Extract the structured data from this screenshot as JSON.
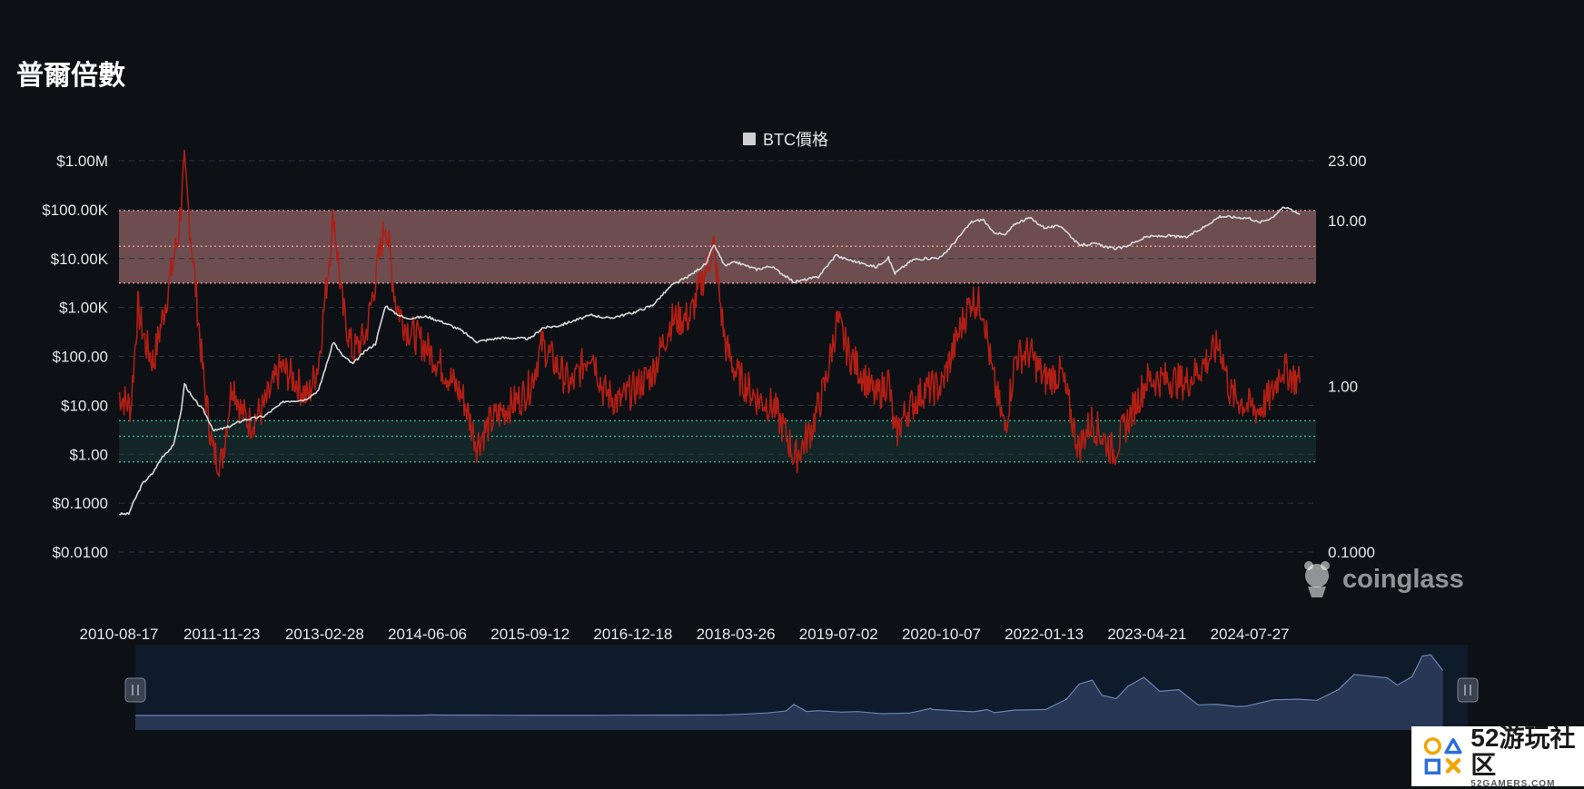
{
  "title": "普爾倍數",
  "legend": {
    "label": "BTC價格",
    "color": "#cfcfcf"
  },
  "watermark": "coinglass",
  "logo": {
    "name": "52游玩社区",
    "sub": "52GAMERS.COM"
  },
  "chart_data": {
    "type": "line",
    "title": "普爾倍數",
    "x_dates": [
      "2010-08-17",
      "2011-11-23",
      "2013-02-28",
      "2014-06-06",
      "2015-09-12",
      "2016-12-18",
      "2018-03-26",
      "2019-07-02",
      "2020-10-07",
      "2022-01-13",
      "2023-04-21",
      "2024-07-27"
    ],
    "left_axis": {
      "scale": "log",
      "ticks": [
        "$1.00M",
        "$100.00K",
        "$10.00K",
        "$1.00K",
        "$100.00",
        "$10.00",
        "$1.00",
        "$0.1000",
        "$0.0100"
      ],
      "range": [
        0.01,
        1000000
      ]
    },
    "right_axis": {
      "scale": "log",
      "ticks": [
        "23.00",
        "10.00",
        "1.00",
        "0.1000"
      ],
      "range": [
        0.1,
        23
      ]
    },
    "bands": [
      {
        "name": "overvalued",
        "from": 4.2,
        "to": 11.5,
        "mid": 7.0,
        "color": "#f4a3a3"
      },
      {
        "name": "undervalued",
        "from": 0.35,
        "to": 0.62,
        "mid": 0.5,
        "color": "#3fbf9f"
      }
    ],
    "grid": true,
    "legend_position": "top-center",
    "series": [
      {
        "name": "BTC價格",
        "axis": "left",
        "color": "#d9d9d9",
        "points": [
          [
            "2010-08-17",
            0.06
          ],
          [
            "2010-09-30",
            0.06
          ],
          [
            "2010-10-20",
            0.1
          ],
          [
            "2010-12-01",
            0.25
          ],
          [
            "2011-01-15",
            0.4
          ],
          [
            "2011-03-01",
            0.9
          ],
          [
            "2011-04-20",
            1.5
          ],
          [
            "2011-05-25",
            8
          ],
          [
            "2011-06-08",
            28
          ],
          [
            "2011-07-15",
            14
          ],
          [
            "2011-09-01",
            8
          ],
          [
            "2011-10-20",
            3
          ],
          [
            "2011-12-15",
            3.5
          ],
          [
            "2012-03-01",
            5
          ],
          [
            "2012-06-01",
            6
          ],
          [
            "2012-09-01",
            12
          ],
          [
            "2012-12-01",
            13
          ],
          [
            "2013-02-01",
            20
          ],
          [
            "2013-04-10",
            200
          ],
          [
            "2013-05-15",
            110
          ],
          [
            "2013-07-05",
            70
          ],
          [
            "2013-09-01",
            130
          ],
          [
            "2013-10-15",
            180
          ],
          [
            "2013-11-30",
            1100
          ],
          [
            "2014-01-05",
            800
          ],
          [
            "2014-03-01",
            600
          ],
          [
            "2014-06-06",
            650
          ],
          [
            "2014-08-15",
            500
          ],
          [
            "2014-11-01",
            350
          ],
          [
            "2015-01-15",
            200
          ],
          [
            "2015-05-01",
            240
          ],
          [
            "2015-09-12",
            230
          ],
          [
            "2015-11-05",
            380
          ],
          [
            "2016-01-15",
            420
          ],
          [
            "2016-06-15",
            700
          ],
          [
            "2016-09-01",
            600
          ],
          [
            "2016-12-18",
            780
          ],
          [
            "2017-03-15",
            1100
          ],
          [
            "2017-06-10",
            2800
          ],
          [
            "2017-09-01",
            4500
          ],
          [
            "2017-11-15",
            8000
          ],
          [
            "2017-12-17",
            19500
          ],
          [
            "2018-02-06",
            7000
          ],
          [
            "2018-03-26",
            8500
          ],
          [
            "2018-06-28",
            6000
          ],
          [
            "2018-09-01",
            7000
          ],
          [
            "2018-11-25",
            3800
          ],
          [
            "2018-12-15",
            3300
          ],
          [
            "2019-04-01",
            4200
          ],
          [
            "2019-06-26",
            12500
          ],
          [
            "2019-07-02",
            10800
          ],
          [
            "2019-10-01",
            8300
          ],
          [
            "2019-12-18",
            6700
          ],
          [
            "2020-02-12",
            10300
          ],
          [
            "2020-03-12",
            5000
          ],
          [
            "2020-06-01",
            9500
          ],
          [
            "2020-10-07",
            10600
          ],
          [
            "2020-12-30",
            29000
          ],
          [
            "2021-02-20",
            56000
          ],
          [
            "2021-04-14",
            63000
          ],
          [
            "2021-05-23",
            36000
          ],
          [
            "2021-07-20",
            30000
          ],
          [
            "2021-09-06",
            52000
          ],
          [
            "2021-11-10",
            68000
          ],
          [
            "2022-01-13",
            43000
          ],
          [
            "2022-04-01",
            46000
          ],
          [
            "2022-06-18",
            19000
          ],
          [
            "2022-09-01",
            20000
          ],
          [
            "2022-11-21",
            16000
          ],
          [
            "2023-01-01",
            16600
          ],
          [
            "2023-04-21",
            28000
          ],
          [
            "2023-08-01",
            29000
          ],
          [
            "2023-10-15",
            27000
          ],
          [
            "2024-01-10",
            46000
          ],
          [
            "2024-03-14",
            73000
          ],
          [
            "2024-07-27",
            67000
          ],
          [
            "2024-09-06",
            54000
          ],
          [
            "2024-11-05",
            69000
          ],
          [
            "2024-12-17",
            106000
          ],
          [
            "2025-01-20",
            108000
          ],
          [
            "2025-03-10",
            80000
          ]
        ]
      },
      {
        "name": "普爾倍數",
        "axis": "right",
        "color": "#b01e14",
        "points": [
          [
            "2010-08-17",
            0.9
          ],
          [
            "2010-10-10",
            0.75
          ],
          [
            "2010-11-10",
            3.0
          ],
          [
            "2010-12-15",
            1.8
          ],
          [
            "2011-01-20",
            1.4
          ],
          [
            "2011-03-15",
            3.2
          ],
          [
            "2011-05-10",
            8.0
          ],
          [
            "2011-06-08",
            21.0
          ],
          [
            "2011-07-25",
            4.5
          ],
          [
            "2011-09-05",
            1.0
          ],
          [
            "2011-10-15",
            0.4
          ],
          [
            "2011-11-23",
            0.35
          ],
          [
            "2012-01-10",
            1.1
          ],
          [
            "2012-02-20",
            0.7
          ],
          [
            "2012-04-01",
            0.6
          ],
          [
            "2012-06-01",
            0.75
          ],
          [
            "2012-08-15",
            1.3
          ],
          [
            "2012-10-15",
            1.1
          ],
          [
            "2012-12-15",
            0.85
          ],
          [
            "2013-02-01",
            1.4
          ],
          [
            "2013-04-10",
            11.0
          ],
          [
            "2013-05-20",
            3.0
          ],
          [
            "2013-07-05",
            1.6
          ],
          [
            "2013-09-01",
            2.0
          ],
          [
            "2013-11-30",
            10.0
          ],
          [
            "2014-01-15",
            3.2
          ],
          [
            "2014-03-01",
            2.3
          ],
          [
            "2014-06-06",
            1.7
          ],
          [
            "2014-09-01",
            1.2
          ],
          [
            "2014-11-15",
            0.85
          ],
          [
            "2015-01-14",
            0.45
          ],
          [
            "2015-03-15",
            0.6
          ],
          [
            "2015-06-01",
            0.75
          ],
          [
            "2015-08-01",
            0.85
          ],
          [
            "2015-09-12",
            1.0
          ],
          [
            "2015-11-05",
            1.8
          ],
          [
            "2016-01-15",
            1.3
          ],
          [
            "2016-03-15",
            1.0
          ],
          [
            "2016-06-15",
            1.7
          ],
          [
            "2016-08-05",
            0.95
          ],
          [
            "2016-10-15",
            0.8
          ],
          [
            "2016-12-18",
            0.95
          ],
          [
            "2017-03-15",
            1.2
          ],
          [
            "2017-06-10",
            2.5
          ],
          [
            "2017-09-01",
            2.6
          ],
          [
            "2017-12-17",
            7.0
          ],
          [
            "2018-02-06",
            1.8
          ],
          [
            "2018-03-26",
            1.2
          ],
          [
            "2018-06-28",
            0.85
          ],
          [
            "2018-09-15",
            0.75
          ],
          [
            "2018-11-25",
            0.45
          ],
          [
            "2018-12-15",
            0.36
          ],
          [
            "2019-03-01",
            0.55
          ],
          [
            "2019-05-01",
            1.0
          ],
          [
            "2019-06-26",
            2.5
          ],
          [
            "2019-08-15",
            1.6
          ],
          [
            "2019-10-15",
            1.2
          ],
          [
            "2019-12-18",
            0.85
          ],
          [
            "2020-02-12",
            1.1
          ],
          [
            "2020-03-12",
            0.5
          ],
          [
            "2020-05-01",
            0.7
          ],
          [
            "2020-07-20",
            0.95
          ],
          [
            "2020-10-07",
            1.0
          ],
          [
            "2020-12-30",
            2.2
          ],
          [
            "2021-02-20",
            3.4
          ],
          [
            "2021-04-14",
            3.0
          ],
          [
            "2021-05-23",
            1.2
          ],
          [
            "2021-07-20",
            0.55
          ],
          [
            "2021-09-06",
            1.5
          ],
          [
            "2021-11-10",
            1.6
          ],
          [
            "2022-01-13",
            1.1
          ],
          [
            "2022-04-01",
            1.2
          ],
          [
            "2022-06-18",
            0.42
          ],
          [
            "2022-08-15",
            0.62
          ],
          [
            "2022-11-21",
            0.4
          ],
          [
            "2023-01-20",
            0.6
          ],
          [
            "2023-04-21",
            1.1
          ],
          [
            "2023-08-01",
            1.1
          ],
          [
            "2023-10-15",
            1.05
          ],
          [
            "2024-01-10",
            1.4
          ],
          [
            "2024-03-14",
            1.8
          ],
          [
            "2024-05-01",
            0.9
          ],
          [
            "2024-07-27",
            0.75
          ],
          [
            "2024-09-06",
            0.72
          ],
          [
            "2024-11-05",
            0.9
          ],
          [
            "2024-12-17",
            1.3
          ],
          [
            "2025-01-20",
            1.2
          ],
          [
            "2025-03-10",
            1.05
          ]
        ]
      }
    ]
  }
}
